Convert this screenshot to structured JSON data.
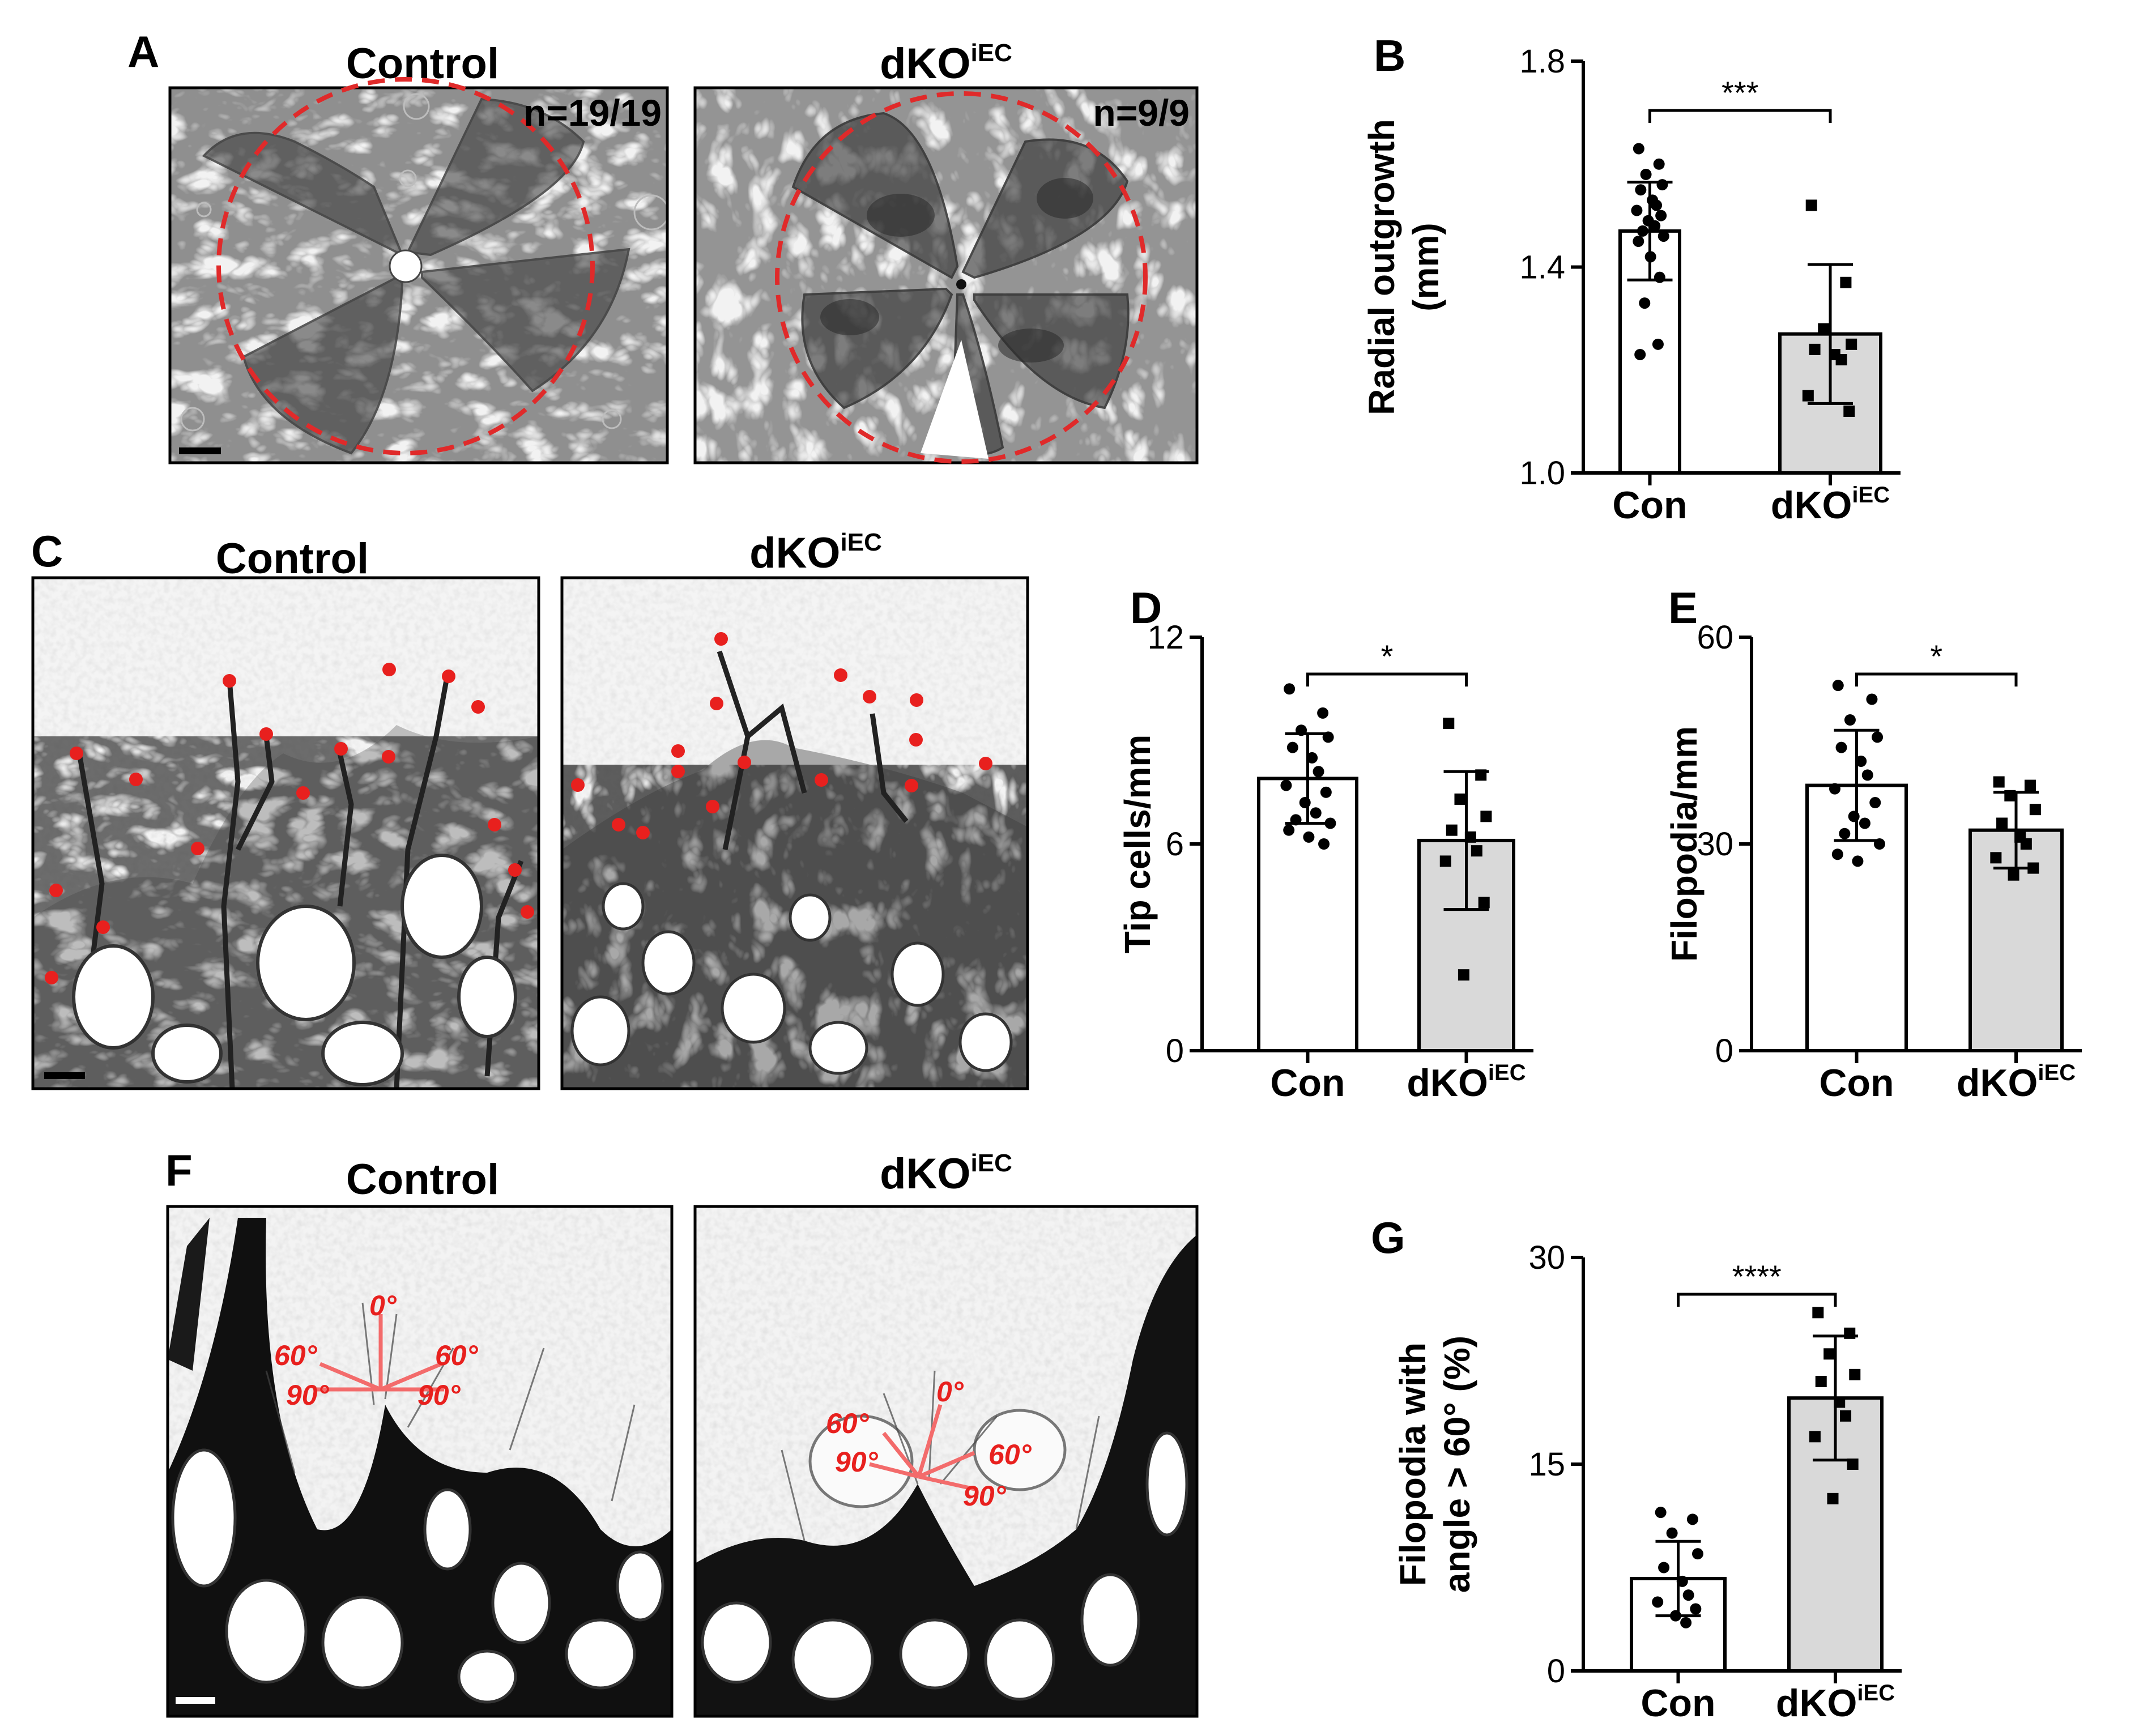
{
  "figure": {
    "panel_letters": [
      "A",
      "B",
      "C",
      "D",
      "E",
      "F",
      "G"
    ],
    "control_label": "Control",
    "dko_label_main": "dKO",
    "dko_label_sup": "iEC",
    "panelA": {
      "n_control": "n=19/19",
      "n_dko": "n=9/9"
    },
    "panelF": {
      "control_angles": [
        "0°",
        "60°",
        "60°",
        "90°",
        "90°"
      ],
      "dko_angles": [
        "0°",
        "60°",
        "60°",
        "90°",
        "90°"
      ]
    }
  },
  "colors": {
    "control_bar": "#ffffff",
    "dko_bar": "#d9d9d9",
    "marker_red": "#e8201e",
    "dashed_circle": "#e02a2a"
  },
  "chart_data": [
    {
      "id": "B",
      "type": "bar",
      "categories": [
        "Con",
        "dKO"
      ],
      "category_sup": [
        "",
        "iEC"
      ],
      "ylabel_lines": [
        "Radial outgrowth",
        "(mm)"
      ],
      "ylim": [
        1.0,
        1.8
      ],
      "yticks": [
        "1.0",
        "1.4",
        "1.8"
      ],
      "means": [
        1.47,
        1.27
      ],
      "sd": [
        0.095,
        0.135
      ],
      "significance": "***",
      "points": [
        [
          1.63,
          1.6,
          1.58,
          1.56,
          1.55,
          1.53,
          1.52,
          1.51,
          1.5,
          1.49,
          1.48,
          1.47,
          1.46,
          1.45,
          1.42,
          1.38,
          1.33,
          1.25,
          1.23
        ],
        [
          1.52,
          1.37,
          1.28,
          1.25,
          1.24,
          1.23,
          1.22,
          1.15,
          1.12
        ]
      ]
    },
    {
      "id": "D",
      "type": "bar",
      "categories": [
        "Con",
        "dKO"
      ],
      "category_sup": [
        "",
        "iEC"
      ],
      "ylabel_lines": [
        "Tip cells/mm"
      ],
      "ylim": [
        0,
        12
      ],
      "yticks": [
        "0",
        "6",
        "12"
      ],
      "means": [
        7.9,
        6.1
      ],
      "sd": [
        1.3,
        2.0
      ],
      "significance": "*",
      "points": [
        [
          10.5,
          9.8,
          9.3,
          9.1,
          8.8,
          8.5,
          8.1,
          7.7,
          7.5,
          7.2,
          6.9,
          6.7,
          6.6,
          6.4,
          6.2,
          6.0
        ],
        [
          9.5,
          8.0,
          7.3,
          6.8,
          6.4,
          6.2,
          5.8,
          5.5,
          4.3,
          2.2
        ]
      ]
    },
    {
      "id": "E",
      "type": "bar",
      "categories": [
        "Con",
        "dKO"
      ],
      "category_sup": [
        "",
        "iEC"
      ],
      "ylabel_lines": [
        "Filopodia/mm"
      ],
      "ylim": [
        0,
        60
      ],
      "yticks": [
        "0",
        "30",
        "60"
      ],
      "means": [
        38.5,
        32.0
      ],
      "sd": [
        8.0,
        5.5
      ],
      "significance": "*",
      "points": [
        [
          53.0,
          51.0,
          48.0,
          45.5,
          44.0,
          42.0,
          40.0,
          38.0,
          36.0,
          34.0,
          33.0,
          31.5,
          30.0,
          28.5,
          27.5
        ],
        [
          39.0,
          38.5,
          37.0,
          35.0,
          33.0,
          31.0,
          30.0,
          28.0,
          26.5,
          25.5
        ]
      ]
    },
    {
      "id": "G",
      "type": "bar",
      "categories": [
        "Con",
        "dKO"
      ],
      "category_sup": [
        "",
        "iEC"
      ],
      "ylabel_lines": [
        "Filopodia with",
        "angle > 60° (%)"
      ],
      "ylim": [
        0,
        30
      ],
      "yticks": [
        "0",
        "15",
        "30"
      ],
      "means": [
        6.7,
        19.8
      ],
      "sd": [
        2.7,
        4.5
      ],
      "significance": "****",
      "points": [
        [
          11.5,
          11.0,
          10.0,
          8.5,
          7.5,
          6.5,
          5.5,
          5.0,
          4.5,
          4.0,
          3.5
        ],
        [
          26.0,
          24.5,
          23.0,
          21.5,
          21.0,
          19.5,
          18.5,
          17.0,
          15.0,
          12.5
        ]
      ]
    }
  ]
}
